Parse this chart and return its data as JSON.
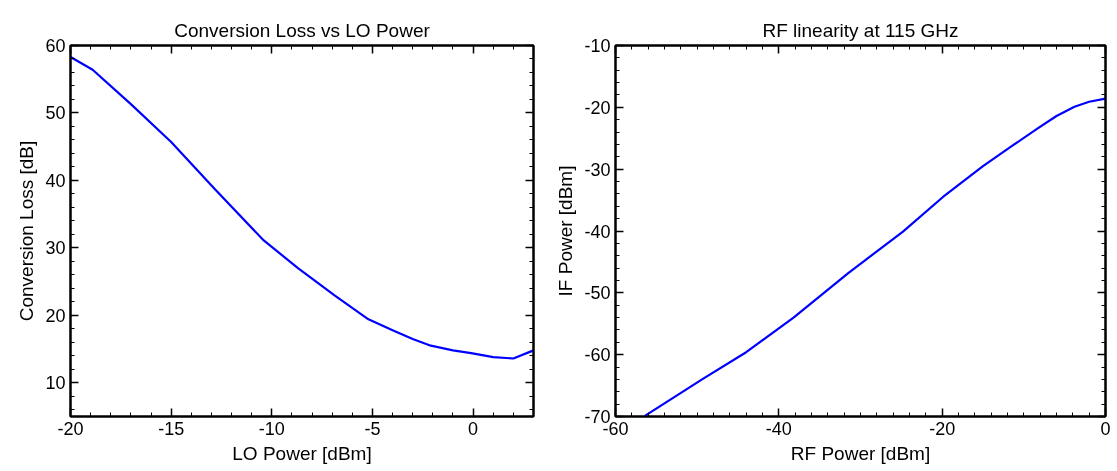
{
  "chart_data": [
    {
      "type": "line",
      "title": "Conversion Loss vs LO Power",
      "xlabel": "LO Power [dBm]",
      "ylabel": "Conversion Loss [dB]",
      "xlim": [
        -20,
        3
      ],
      "ylim": [
        5,
        60
      ],
      "xticks": [
        -20,
        -15,
        -10,
        -5,
        0
      ],
      "yticks": [
        10,
        20,
        30,
        40,
        50,
        60
      ],
      "grid": false,
      "marker": "none",
      "line_style": "solid",
      "series": [
        {
          "color": "#0000ff",
          "x": [
            -20,
            -18.9,
            -17.0,
            -15.0,
            -12.8,
            -10.4,
            -8.7,
            -6.9,
            -5.2,
            -4.0,
            -3.0,
            -2.1,
            -1.0,
            -0.1,
            1.0,
            2.0,
            3.0
          ],
          "values": [
            58.3,
            56.4,
            51.3,
            45.7,
            38.6,
            31.1,
            27.0,
            23.0,
            19.4,
            17.8,
            16.5,
            15.5,
            14.8,
            14.4,
            13.8,
            13.6,
            14.8
          ]
        }
      ]
    },
    {
      "type": "line",
      "title": "RF linearity at 115 GHz",
      "xlabel": "RF Power [dBm]",
      "ylabel": "IF Power [dBm]",
      "xlim": [
        -60,
        0
      ],
      "ylim": [
        -70,
        -10
      ],
      "xticks": [
        -60,
        -40,
        -20,
        0
      ],
      "yticks": [
        -70,
        -60,
        -50,
        -40,
        -30,
        -20,
        -10
      ],
      "grid": false,
      "marker": "none",
      "line_style": "solid",
      "series": [
        {
          "color": "#0000ff",
          "x": [
            -56.4,
            -49.4,
            -44.0,
            -38.2,
            -31.5,
            -24.8,
            -19.9,
            -15.0,
            -11.4,
            -8.3,
            -6.0,
            -3.8,
            -2.0,
            0
          ],
          "values": [
            -69.9,
            -64.0,
            -59.6,
            -54.0,
            -46.8,
            -40.1,
            -34.5,
            -29.5,
            -26.2,
            -23.4,
            -21.4,
            -19.9,
            -19.1,
            -18.6
          ]
        }
      ]
    }
  ]
}
